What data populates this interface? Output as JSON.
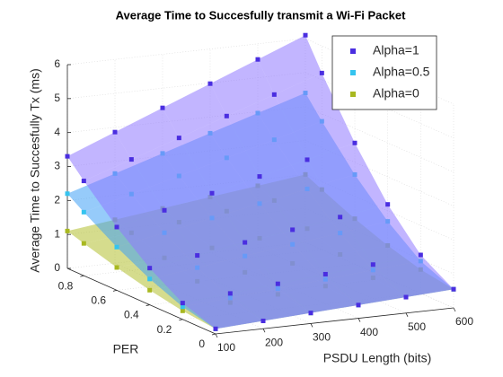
{
  "chart_data": {
    "type": "surface3d",
    "title": "Average Time to Succesfully transmit a Wi-Fi Packet",
    "xlabel": "PSDU Length (bits)",
    "ylabel": "PER",
    "zlabel": "Average Time to Succesfully Tx (ms)",
    "x": [
      100,
      200,
      300,
      400,
      500,
      600
    ],
    "y": [
      0,
      0.2,
      0.4,
      0.6,
      0.8,
      0.9
    ],
    "xlim": [
      100,
      600
    ],
    "xticks": [
      100,
      200,
      300,
      400,
      500,
      600
    ],
    "ylim": [
      0,
      0.9
    ],
    "yticks": [
      0,
      0.2,
      0.4,
      0.6,
      0.8
    ],
    "zlim": [
      0,
      6
    ],
    "zticks": [
      0,
      1,
      2,
      3,
      4,
      5,
      6
    ],
    "grid": true,
    "legend": "northeast",
    "series": [
      {
        "name": "Alpha=1",
        "color": "#4a2ee0",
        "face_color": "#8f78ff",
        "z": [
          [
            0.15,
            0.23,
            0.31,
            0.39,
            0.47,
            0.55
          ],
          [
            0.48,
            0.61,
            0.74,
            0.87,
            1.0,
            1.13
          ],
          [
            1.08,
            1.3,
            1.53,
            1.75,
            1.97,
            2.19
          ],
          [
            1.86,
            2.2,
            2.55,
            2.89,
            3.23,
            3.57
          ],
          [
            2.79,
            3.27,
            3.75,
            4.24,
            4.72,
            5.2
          ],
          [
            3.3,
            3.86,
            4.42,
            4.98,
            5.54,
            6.1
          ]
        ]
      },
      {
        "name": "Alpha=0.5",
        "color": "#35c4ef",
        "face_color": "#3fa0f5",
        "z": [
          [
            0.15,
            0.23,
            0.31,
            0.39,
            0.47,
            0.55
          ],
          [
            0.37,
            0.48,
            0.6,
            0.72,
            0.84,
            0.95
          ],
          [
            0.76,
            0.94,
            1.13,
            1.32,
            1.5,
            1.69
          ],
          [
            1.27,
            1.54,
            1.82,
            2.09,
            2.37,
            2.64
          ],
          [
            1.87,
            2.25,
            2.63,
            3.01,
            3.39,
            3.78
          ],
          [
            2.2,
            2.64,
            3.08,
            3.52,
            3.96,
            4.4
          ]
        ]
      },
      {
        "name": "Alpha=0",
        "color": "#a8b820",
        "face_color": "#b3c030",
        "z": [
          [
            0.15,
            0.23,
            0.31,
            0.39,
            0.47,
            0.55
          ],
          [
            0.25,
            0.34,
            0.43,
            0.52,
            0.61,
            0.7
          ],
          [
            0.43,
            0.54,
            0.65,
            0.76,
            0.87,
            0.98
          ],
          [
            0.67,
            0.8,
            0.94,
            1.07,
            1.2,
            1.34
          ],
          [
            0.95,
            1.11,
            1.27,
            1.44,
            1.6,
            1.77
          ],
          [
            1.1,
            1.28,
            1.46,
            1.64,
            1.82,
            2.0
          ]
        ]
      }
    ]
  }
}
